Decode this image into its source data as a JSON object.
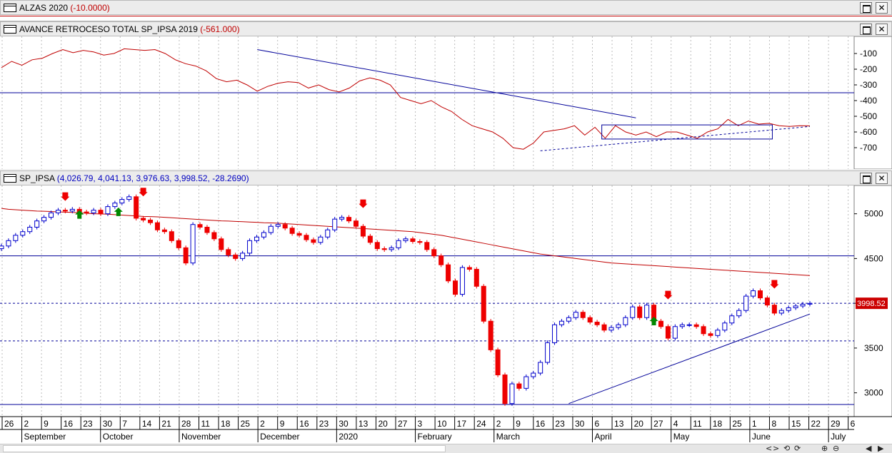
{
  "panels": {
    "alzas": {
      "name": "ALZAS 2020",
      "value": "(-10.0000)"
    },
    "avance": {
      "name": "AVANCE RETROCESO TOTAL SP_IPSA 2019",
      "value": "(-561.000)"
    },
    "ipsa": {
      "name": "SP_IPSA",
      "value": "(4,026.79, 4,041.13, 3,976.63, 3,998.52, -28.2690)"
    }
  },
  "window_buttons": {
    "maximize": "□",
    "close": "✕"
  },
  "price_badge": "3998.52",
  "scroll_controls": [
    "<",
    ">",
    "⟲",
    "⟳",
    "⊕",
    "⊖",
    "◀",
    "▶"
  ],
  "colors": {
    "up": "#0000cc",
    "down": "#ee0000",
    "ma": "#c00000",
    "trend": "#000099",
    "accent_green": "#008800"
  },
  "chart_data": [
    {
      "type": "line",
      "series": [
        {
          "name": "AVANCE RETROCESO TOTAL SP_IPSA 2019",
          "color": "#c00000",
          "x": [
            0,
            3,
            6,
            9,
            12,
            15,
            18,
            21,
            24,
            27,
            30,
            33,
            36,
            39,
            42,
            45,
            48,
            51,
            54,
            57,
            60,
            63,
            66,
            69,
            72,
            75,
            78,
            81,
            84,
            87,
            90,
            93,
            96,
            99,
            102,
            105,
            108,
            111,
            114,
            117,
            120,
            123,
            126,
            129,
            132,
            135,
            138,
            141,
            144,
            147,
            150,
            153,
            156,
            159,
            162,
            165,
            168,
            171,
            174,
            177,
            180,
            183,
            186,
            189,
            192,
            195,
            198,
            201,
            204,
            207,
            210,
            213,
            216,
            219,
            222,
            225,
            228,
            231,
            234,
            237
          ],
          "values": [
            -190,
            -150,
            -175,
            -140,
            -130,
            -100,
            -75,
            -95,
            -80,
            -90,
            -110,
            -100,
            -70,
            -75,
            -80,
            -75,
            -100,
            -140,
            -165,
            -180,
            -210,
            -260,
            -280,
            -270,
            -300,
            -340,
            -310,
            -290,
            -280,
            -285,
            -320,
            -300,
            -330,
            -345,
            -320,
            -275,
            -255,
            -270,
            -300,
            -380,
            -400,
            -420,
            -400,
            -440,
            -470,
            -520,
            -560,
            -580,
            -600,
            -640,
            -700,
            -710,
            -670,
            -600,
            -590,
            -580,
            -560,
            -620,
            -570,
            -640,
            -560,
            -600,
            -620,
            -600,
            -630,
            -600,
            -600,
            -620,
            -640,
            -600,
            -580,
            -520,
            -560,
            -530,
            -550,
            -545,
            -560,
            -565,
            -560,
            -561
          ]
        }
      ],
      "ylim": [
        -800,
        0
      ],
      "yticks": [
        -100,
        -200,
        -300,
        -400,
        -500,
        -600,
        -700
      ],
      "h_line": -350,
      "grid": true
    },
    {
      "type": "candlestick",
      "series": [
        {
          "name": "SP_IPSA",
          "x": [
            0,
            2,
            4,
            6,
            8,
            10,
            12,
            14,
            16,
            18,
            20,
            22,
            24,
            26,
            28,
            30,
            32,
            34,
            36,
            38,
            40,
            42,
            44,
            46,
            48,
            50,
            52,
            54,
            56,
            58,
            60,
            62,
            64,
            66,
            68,
            70,
            72,
            74,
            76,
            78,
            80,
            82,
            84,
            86,
            88,
            90,
            92,
            94,
            96,
            98,
            100,
            102,
            104,
            106,
            108,
            110,
            112,
            114,
            116,
            118,
            120,
            122,
            124,
            126,
            128,
            130,
            132,
            134,
            136,
            138,
            140,
            142,
            144,
            146,
            148,
            150,
            152,
            154,
            156,
            158,
            160,
            162,
            164,
            166,
            168,
            170,
            172,
            174,
            176,
            178,
            180,
            182,
            184,
            186,
            188,
            190,
            192,
            194,
            196,
            198,
            200,
            202,
            204,
            206,
            208,
            210,
            212,
            214,
            216,
            218,
            220,
            222,
            224,
            226,
            228
          ],
          "close": [
            4640,
            4700,
            4760,
            4800,
            4850,
            4920,
            4960,
            5010,
            5040,
            5030,
            5050,
            5020,
            5010,
            5040,
            5000,
            5080,
            5120,
            5160,
            5190,
            4950,
            4930,
            4900,
            4820,
            4800,
            4700,
            4620,
            4450,
            4880,
            4850,
            4790,
            4720,
            4600,
            4540,
            4500,
            4560,
            4700,
            4740,
            4790,
            4860,
            4880,
            4840,
            4780,
            4760,
            4710,
            4680,
            4740,
            4820,
            4940,
            4960,
            4920,
            4860,
            4750,
            4680,
            4610,
            4600,
            4620,
            4700,
            4720,
            4690,
            4680,
            4600,
            4530,
            4430,
            4250,
            4100,
            4400,
            4380,
            4190,
            3800,
            3480,
            3200,
            2880,
            3100,
            3050,
            3180,
            3220,
            3340,
            3560,
            3760,
            3800,
            3840,
            3900,
            3840,
            3790,
            3760,
            3700,
            3730,
            3760,
            3840,
            3960,
            3840,
            3980,
            3800,
            3740,
            3610,
            3740,
            3760,
            3760,
            3740,
            3660,
            3640,
            3700,
            3780,
            3860,
            3920,
            4080,
            4140,
            4060,
            3980,
            3890,
            3920,
            3950,
            3970,
            3990,
            3999
          ],
          "ma": [
            5060,
            5050,
            5045,
            5040,
            5035,
            5030,
            5028,
            5025,
            5020,
            5018,
            5015,
            5010,
            5005,
            5000,
            4998,
            4995,
            4990,
            4985,
            4980,
            4975,
            4970,
            4968,
            4965,
            4960,
            4955,
            4950,
            4945,
            4940,
            4935,
            4930,
            4925,
            4920,
            4918,
            4915,
            4912,
            4908,
            4905,
            4900,
            4898,
            4895,
            4890,
            4885,
            4880,
            4875,
            4870,
            4865,
            4860,
            4855,
            4850,
            4845,
            4840,
            4835,
            4830,
            4825,
            4820,
            4815,
            4810,
            4805,
            4800,
            4790,
            4780,
            4770,
            4760,
            4745,
            4730,
            4715,
            4700,
            4685,
            4670,
            4655,
            4640,
            4625,
            4610,
            4595,
            4580,
            4565,
            4550,
            4540,
            4530,
            4520,
            4510,
            4500,
            4490,
            4480,
            4470,
            4460,
            4450,
            4445,
            4440,
            4435,
            4430,
            4425,
            4420,
            4415,
            4410,
            4405,
            4400,
            4395,
            4390,
            4385,
            4380,
            4375,
            4370,
            4365,
            4360,
            4355,
            4350,
            4345,
            4340,
            4335,
            4330,
            4325,
            4320,
            4315,
            4310
          ]
        }
      ],
      "ylim": [
        2750,
        5300
      ],
      "yticks": [
        3000,
        3500,
        4000,
        4500,
        5000
      ],
      "h_lines": [
        {
          "value": 4530,
          "style": "solid"
        },
        {
          "value": 4000,
          "style": "dashed"
        },
        {
          "value": 3580,
          "style": "dashed"
        },
        {
          "value": 2870,
          "style": "solid"
        }
      ],
      "x_day_labels": [
        "26",
        "2",
        "9",
        "16",
        "23",
        "30",
        "7",
        "14",
        "21",
        "28",
        "11",
        "18",
        "25",
        "2",
        "9",
        "16",
        "23",
        "30",
        "13",
        "20",
        "27",
        "3",
        "10",
        "17",
        "24",
        "2",
        "9",
        "16",
        "23",
        "30",
        "6",
        "13",
        "20",
        "27",
        "4",
        "11",
        "18",
        "25",
        "1",
        "8",
        "15",
        "22",
        "29",
        "6"
      ],
      "x_month_labels": [
        "September",
        "October",
        "November",
        "December",
        "2020",
        "February",
        "March",
        "April",
        "May",
        "June",
        "July"
      ],
      "grid": true
    }
  ]
}
